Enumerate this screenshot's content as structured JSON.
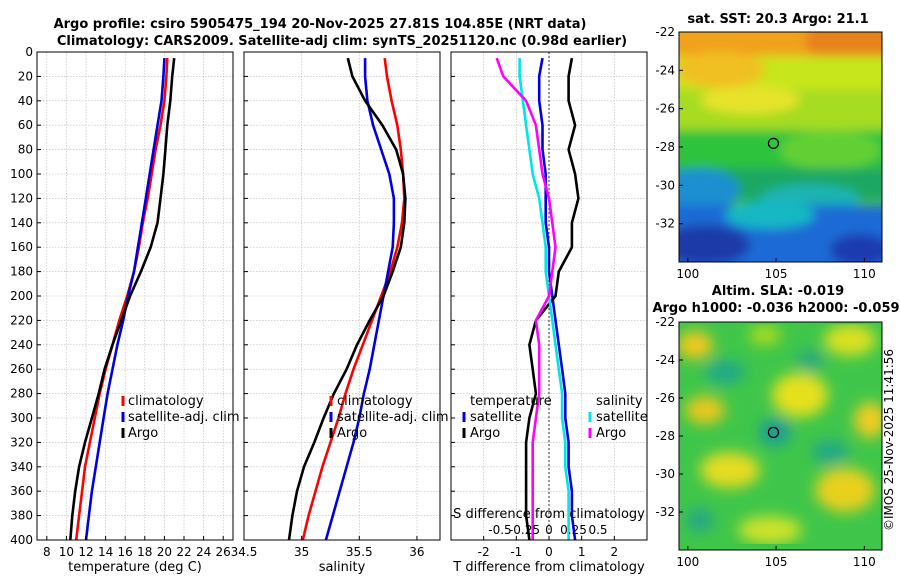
{
  "figure": {
    "title_line1": "Argo profile: csiro 5905475_194 20-Nov-2025 27.81S 104.85E (NRT data)",
    "title_line2": "Climatology: CARS2009. Satellite-adj clim: synTS_20251120.nc (0.98d earlier)",
    "sst_title": "sat. SST: 20.3 Argo: 21.1",
    "sla_title1": "Altim. SLA: -0.019",
    "sla_title2": "Argo h1000: -0.036 h2000: -0.059",
    "watermark": "©IMOS 25-Nov-2025 11:41:56"
  },
  "colors": {
    "climatology": "#ff0000",
    "satellite_adj": "#0000dd",
    "argo": "#000000",
    "salinity_satellite": "#00e5e5",
    "salinity_argo": "#ff00ff"
  },
  "chart_data": [
    {
      "type": "line",
      "id": "temperature",
      "xlabel": "temperature (deg C)",
      "xlim": [
        7,
        27
      ],
      "ylim": [
        0,
        400
      ],
      "yreverse": true,
      "xticks": [
        8,
        10,
        12,
        14,
        16,
        18,
        20,
        22,
        24,
        26
      ],
      "yticks": [
        0,
        20,
        40,
        60,
        80,
        100,
        120,
        140,
        160,
        180,
        200,
        220,
        240,
        260,
        280,
        300,
        320,
        340,
        360,
        380,
        400
      ],
      "legend": [
        "climatology",
        "satellite-adj. clim",
        "Argo"
      ],
      "series": [
        {
          "name": "climatology",
          "color": "#ff0000",
          "x": [
            20.3,
            20.2,
            20.0,
            19.6,
            19.1,
            18.7,
            18.3,
            17.8,
            17.4,
            16.9,
            16.2,
            15.4,
            14.7,
            14.0,
            13.4,
            12.9,
            12.4,
            11.9,
            11.6,
            11.3,
            11.0
          ],
          "y": [
            5,
            20,
            40,
            60,
            80,
            100,
            120,
            140,
            160,
            180,
            200,
            220,
            240,
            260,
            280,
            300,
            320,
            340,
            360,
            380,
            400
          ]
        },
        {
          "name": "satellite-adj. clim",
          "color": "#0000dd",
          "x": [
            20.0,
            19.9,
            19.7,
            19.3,
            18.9,
            18.5,
            18.1,
            17.7,
            17.3,
            16.9,
            16.3,
            15.8,
            15.2,
            14.7,
            14.2,
            13.8,
            13.4,
            13.0,
            12.6,
            12.3,
            12.0
          ],
          "y": [
            5,
            20,
            40,
            60,
            80,
            100,
            120,
            140,
            160,
            180,
            200,
            220,
            240,
            260,
            280,
            300,
            320,
            340,
            360,
            380,
            400
          ]
        },
        {
          "name": "Argo",
          "color": "#000000",
          "x": [
            21.0,
            20.8,
            20.6,
            20.3,
            20.1,
            19.9,
            19.6,
            19.3,
            18.6,
            17.6,
            16.5,
            15.6,
            14.7,
            13.9,
            13.3,
            12.6,
            11.9,
            11.3,
            10.9,
            10.6,
            10.4
          ],
          "y": [
            5,
            20,
            40,
            60,
            80,
            100,
            120,
            140,
            160,
            180,
            200,
            220,
            240,
            260,
            280,
            300,
            320,
            340,
            360,
            380,
            400
          ]
        }
      ]
    },
    {
      "type": "line",
      "id": "salinity",
      "xlabel": "salinity",
      "xlim": [
        34.5,
        36.2
      ],
      "ylim": [
        0,
        400
      ],
      "yreverse": true,
      "xticks": [
        34.5,
        35,
        35.5,
        36
      ],
      "xticklabels": [
        "34.5",
        "35",
        "35.5",
        "36"
      ],
      "legend": [
        "climatology",
        "satellite-adj. clim",
        "Argo"
      ],
      "series": [
        {
          "name": "climatology",
          "color": "#ff0000",
          "x": [
            35.72,
            35.74,
            35.78,
            35.83,
            35.86,
            35.88,
            35.89,
            35.87,
            35.83,
            35.77,
            35.69,
            35.61,
            35.53,
            35.45,
            35.38,
            35.32,
            35.25,
            35.18,
            35.12,
            35.06,
            35.01
          ],
          "y": [
            5,
            20,
            40,
            60,
            80,
            100,
            120,
            140,
            160,
            180,
            200,
            220,
            240,
            260,
            280,
            300,
            320,
            340,
            360,
            380,
            400
          ]
        },
        {
          "name": "satellite-adj. clim",
          "color": "#0000dd",
          "x": [
            35.55,
            35.55,
            35.57,
            35.62,
            35.69,
            35.76,
            35.8,
            35.8,
            35.79,
            35.75,
            35.71,
            35.67,
            35.63,
            35.59,
            35.54,
            35.5,
            35.45,
            35.39,
            35.33,
            35.27,
            35.21
          ],
          "y": [
            5,
            20,
            40,
            60,
            80,
            100,
            120,
            140,
            160,
            180,
            200,
            220,
            240,
            260,
            280,
            300,
            320,
            340,
            360,
            380,
            400
          ]
        },
        {
          "name": "Argo",
          "color": "#000000",
          "x": [
            35.4,
            35.44,
            35.55,
            35.7,
            35.82,
            35.88,
            35.9,
            35.89,
            35.86,
            35.79,
            35.71,
            35.59,
            35.48,
            35.39,
            35.28,
            35.19,
            35.11,
            35.02,
            34.96,
            34.92,
            34.89
          ],
          "y": [
            5,
            20,
            40,
            60,
            80,
            100,
            120,
            140,
            160,
            180,
            200,
            220,
            240,
            260,
            280,
            300,
            320,
            340,
            360,
            380,
            400
          ]
        }
      ]
    },
    {
      "type": "line",
      "id": "difference",
      "xlabel": "T difference from climatology",
      "top_xlabel": "S difference from climatology",
      "xlim": [
        -3,
        3
      ],
      "ylim": [
        0,
        400
      ],
      "yreverse": true,
      "xticks": [
        -2,
        -1,
        0,
        1,
        2
      ],
      "xticklabels": [
        "-2",
        "-1",
        "0",
        "1",
        "2"
      ],
      "top_xticks": [
        -1.5,
        -0.75,
        0,
        0.75,
        1.5
      ],
      "top_xticklabels": [
        "-0.5",
        "-0.25",
        "0",
        "0.25",
        "0.5"
      ],
      "legend_left_title": "temperature",
      "legend_right_title": "salinity",
      "legend_left": [
        "satellite",
        "Argo"
      ],
      "legend_right": [
        "satellite",
        "Argo"
      ],
      "series": [
        {
          "name": "temperature satellite",
          "color": "#0000dd",
          "x": [
            -0.2,
            -0.3,
            -0.3,
            -0.2,
            -0.2,
            -0.1,
            -0.1,
            -0.1,
            0.0,
            0.0,
            0.1,
            0.2,
            0.3,
            0.4,
            0.5,
            0.5,
            0.6,
            0.6,
            0.7,
            0.7,
            0.8
          ],
          "y": [
            5,
            20,
            40,
            60,
            80,
            100,
            120,
            140,
            160,
            180,
            200,
            220,
            240,
            260,
            280,
            300,
            320,
            340,
            360,
            380,
            400
          ]
        },
        {
          "name": "temperature Argo",
          "color": "#000000",
          "x": [
            0.7,
            0.6,
            0.6,
            0.8,
            0.6,
            0.8,
            0.9,
            0.7,
            0.7,
            0.3,
            0.2,
            -0.4,
            -0.6,
            -0.5,
            -0.4,
            -0.6,
            -0.7,
            -0.7,
            -0.7,
            -0.7,
            -0.6
          ],
          "y": [
            5,
            20,
            40,
            60,
            80,
            100,
            120,
            140,
            160,
            180,
            200,
            220,
            240,
            260,
            280,
            300,
            320,
            340,
            360,
            380,
            400
          ]
        },
        {
          "name": "salinity satellite",
          "color": "#00e5e5",
          "x": [
            -0.9,
            -0.9,
            -0.8,
            -0.7,
            -0.6,
            -0.5,
            -0.3,
            -0.2,
            -0.1,
            -0.1,
            0.0,
            0.1,
            0.2,
            0.3,
            0.4,
            0.4,
            0.5,
            0.5,
            0.6,
            0.6,
            0.6
          ],
          "y": [
            5,
            20,
            40,
            60,
            80,
            100,
            120,
            140,
            160,
            180,
            200,
            220,
            240,
            260,
            280,
            300,
            320,
            340,
            360,
            380,
            400
          ]
        },
        {
          "name": "salinity Argo",
          "color": "#ff00ff",
          "x": [
            -1.6,
            -1.4,
            -0.7,
            -0.4,
            -0.3,
            -0.2,
            0.0,
            0.1,
            0.2,
            0.1,
            0.0,
            -0.4,
            -0.3,
            -0.3,
            -0.3,
            -0.4,
            -0.5,
            -0.5,
            -0.5,
            -0.5,
            -0.5
          ],
          "y": [
            5,
            20,
            40,
            60,
            80,
            100,
            120,
            140,
            160,
            180,
            200,
            220,
            240,
            260,
            280,
            300,
            320,
            340,
            360,
            380,
            400
          ]
        }
      ]
    },
    {
      "type": "heatmap",
      "id": "sst_map",
      "title": "sat. SST: 20.3 Argo: 21.1",
      "xlim": [
        99.5,
        111
      ],
      "ylim": [
        -34,
        -22
      ],
      "xticks": [
        100,
        105,
        110
      ],
      "yticks": [
        -22,
        -24,
        -26,
        -28,
        -30,
        -32
      ],
      "marker": {
        "lon": 104.85,
        "lat": -27.81
      }
    },
    {
      "type": "heatmap",
      "id": "sla_map",
      "title": "Altim. SLA: -0.019",
      "xlim": [
        99.5,
        111
      ],
      "ylim": [
        -34,
        -22
      ],
      "xticks": [
        100,
        105,
        110
      ],
      "yticks": [
        -22,
        -24,
        -26,
        -28,
        -30,
        -32
      ],
      "marker": {
        "lon": 104.85,
        "lat": -27.81
      }
    }
  ]
}
